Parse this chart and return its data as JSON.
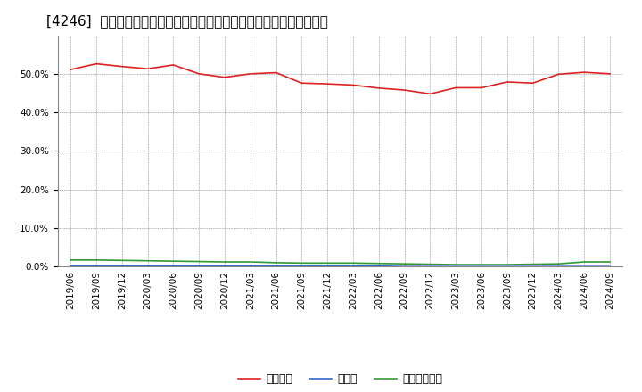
{
  "title": "[4246]  自己資本、のれん、繰延税金資産の総資産に対する比率の推移",
  "x_labels": [
    "2019/06",
    "2019/09",
    "2019/12",
    "2020/03",
    "2020/06",
    "2020/09",
    "2020/12",
    "2021/03",
    "2021/06",
    "2021/09",
    "2021/12",
    "2022/03",
    "2022/06",
    "2022/09",
    "2022/12",
    "2023/03",
    "2023/06",
    "2023/09",
    "2023/12",
    "2024/03",
    "2024/06",
    "2024/09"
  ],
  "equity": [
    0.511,
    0.526,
    0.519,
    0.513,
    0.523,
    0.5,
    0.491,
    0.5,
    0.503,
    0.476,
    0.474,
    0.471,
    0.463,
    0.458,
    0.448,
    0.464,
    0.464,
    0.479,
    0.476,
    0.499,
    0.504,
    0.5
  ],
  "noren": [
    0.001,
    0.001,
    0.001,
    0.001,
    0.001,
    0.001,
    0.001,
    0.001,
    0.001,
    0.001,
    0.001,
    0.001,
    0.001,
    0.0,
    0.0,
    0.0,
    0.0,
    0.0,
    0.0,
    0.0,
    0.0,
    0.0
  ],
  "deferred_tax": [
    0.017,
    0.017,
    0.016,
    0.015,
    0.014,
    0.013,
    0.012,
    0.012,
    0.01,
    0.009,
    0.009,
    0.009,
    0.008,
    0.007,
    0.006,
    0.005,
    0.005,
    0.005,
    0.006,
    0.007,
    0.012,
    0.012
  ],
  "equity_color": "#dd2222",
  "noren_color": "#3366cc",
  "deferred_tax_color": "#339933",
  "background_color": "#ffffff",
  "plot_bg_color": "#ffffff",
  "grid_color": "#999999",
  "ylim": [
    0.0,
    0.6
  ],
  "yticks": [
    0.0,
    0.1,
    0.2,
    0.3,
    0.4,
    0.5
  ],
  "legend_labels": [
    "自己資本",
    "のれん",
    "繰延税金資産"
  ],
  "title_fontsize": 11,
  "tick_fontsize": 7.5,
  "legend_fontsize": 9
}
